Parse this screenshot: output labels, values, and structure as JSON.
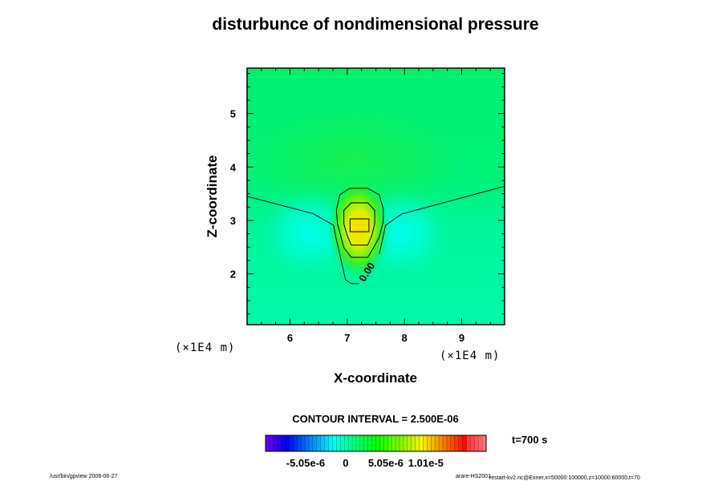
{
  "chart_data": {
    "type": "heatmap",
    "subtype": "shaded contour",
    "title": "disturbunce of nondimensional pressure",
    "xlabel": "X-coordinate",
    "ylabel": "Z-coordinate",
    "x_unit": "(×1E4 m)",
    "y_unit": "(×1E4 m)",
    "xlim": [
      5.25,
      9.75
    ],
    "ylim": [
      1.05,
      5.85
    ],
    "x_ticks": [
      "6",
      "7",
      "8",
      "9"
    ],
    "x_tick_values": [
      6,
      7,
      8,
      9
    ],
    "y_ticks": [
      "2",
      "3",
      "4",
      "5"
    ],
    "y_tick_values": [
      2,
      3,
      4,
      5
    ],
    "contour_interval_label": "CONTOUR INTERVAL = 2.500E-06",
    "contour_label": "0.00",
    "contours": [
      {
        "level": 0,
        "points": [
          [
            5.25,
            3.45
          ],
          [
            6.4,
            3.13
          ],
          [
            6.76,
            2.91
          ],
          [
            6.8,
            2.69
          ],
          [
            6.97,
            1.89
          ],
          [
            7.07,
            1.82
          ],
          [
            7.21,
            1.82
          ]
        ]
      },
      {
        "level": 0,
        "points": [
          [
            7.56,
            2.37
          ],
          [
            7.67,
            2.91
          ],
          [
            7.95,
            3.12
          ],
          [
            9.75,
            3.64
          ]
        ]
      },
      {
        "level": 2.5e-06,
        "closed": true,
        "points": [
          [
            7.04,
            3.6
          ],
          [
            7.36,
            3.6
          ],
          [
            7.56,
            3.48
          ],
          [
            7.63,
            3.21
          ],
          [
            7.63,
            2.98
          ],
          [
            7.56,
            2.69
          ],
          [
            7.46,
            2.49
          ],
          [
            7.36,
            2.31
          ],
          [
            7.07,
            2.31
          ],
          [
            6.94,
            2.49
          ],
          [
            6.83,
            2.94
          ],
          [
            6.81,
            3.19
          ],
          [
            6.87,
            3.48
          ]
        ]
      },
      {
        "level": 5e-06,
        "closed": true,
        "points": [
          [
            7.07,
            3.33
          ],
          [
            7.36,
            3.33
          ],
          [
            7.48,
            3.19
          ],
          [
            7.48,
            2.94
          ],
          [
            7.43,
            2.72
          ],
          [
            7.36,
            2.54
          ],
          [
            7.07,
            2.54
          ],
          [
            7.0,
            2.72
          ],
          [
            6.94,
            2.94
          ],
          [
            6.94,
            3.19
          ]
        ]
      },
      {
        "level": 7.5e-06,
        "closed": true,
        "points": [
          [
            7.05,
            3.03
          ],
          [
            7.38,
            3.03
          ],
          [
            7.38,
            2.79
          ],
          [
            7.05,
            2.79
          ]
        ]
      }
    ],
    "field_features": [
      {
        "kind": "maximum",
        "x": 7.2,
        "z": 2.9,
        "color": "#ffe000"
      },
      {
        "kind": "minimum",
        "x": 6.35,
        "z": 2.75,
        "color": "#00ffe8"
      },
      {
        "kind": "minimum",
        "x": 7.95,
        "z": 2.75,
        "color": "#00ffe8"
      }
    ],
    "colors": {
      "upper_background": "#00f070",
      "lower_background": "#00f5a0"
    },
    "colorbar": {
      "tick_labels": [
        "-5.05e-6",
        "0",
        "5.05e-6",
        "1.01e-5"
      ],
      "tick_values": [
        -5.05e-06,
        0,
        5.05e-06,
        1.01e-05
      ],
      "range": [
        -1.01e-05,
        1.77e-05
      ],
      "colormap": "rainbow (violet to red/pink)"
    },
    "time_label": "t=700 s"
  },
  "footer": {
    "left": "/usr/bin/gpview 2006-06-27",
    "right_main": "arare-HS2001",
    "right_sub": "restart-kv2.nc@Exner,x=50000:100000,z=10000:60000,t=70"
  }
}
